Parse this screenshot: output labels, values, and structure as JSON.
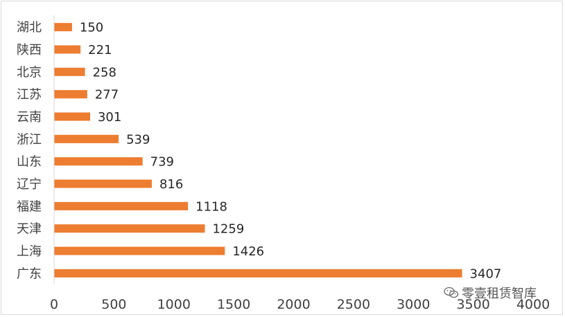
{
  "chart_data": {
    "type": "bar",
    "orientation": "horizontal",
    "categories": [
      "湖北",
      "陕西",
      "北京",
      "江苏",
      "云南",
      "浙江",
      "山东",
      "辽宁",
      "福建",
      "天津",
      "上海",
      "广东"
    ],
    "values": [
      150,
      221,
      258,
      277,
      301,
      539,
      739,
      816,
      1118,
      1259,
      1426,
      3407
    ],
    "xlim": [
      0,
      4000
    ],
    "xticks": [
      0,
      500,
      1000,
      1500,
      2000,
      2500,
      3000,
      3500,
      4000
    ],
    "bar_color": "#ED7D31",
    "grid": false,
    "legend": "none"
  },
  "watermark": {
    "icon": "wechat-icon",
    "text": "零壹租赁智库"
  }
}
